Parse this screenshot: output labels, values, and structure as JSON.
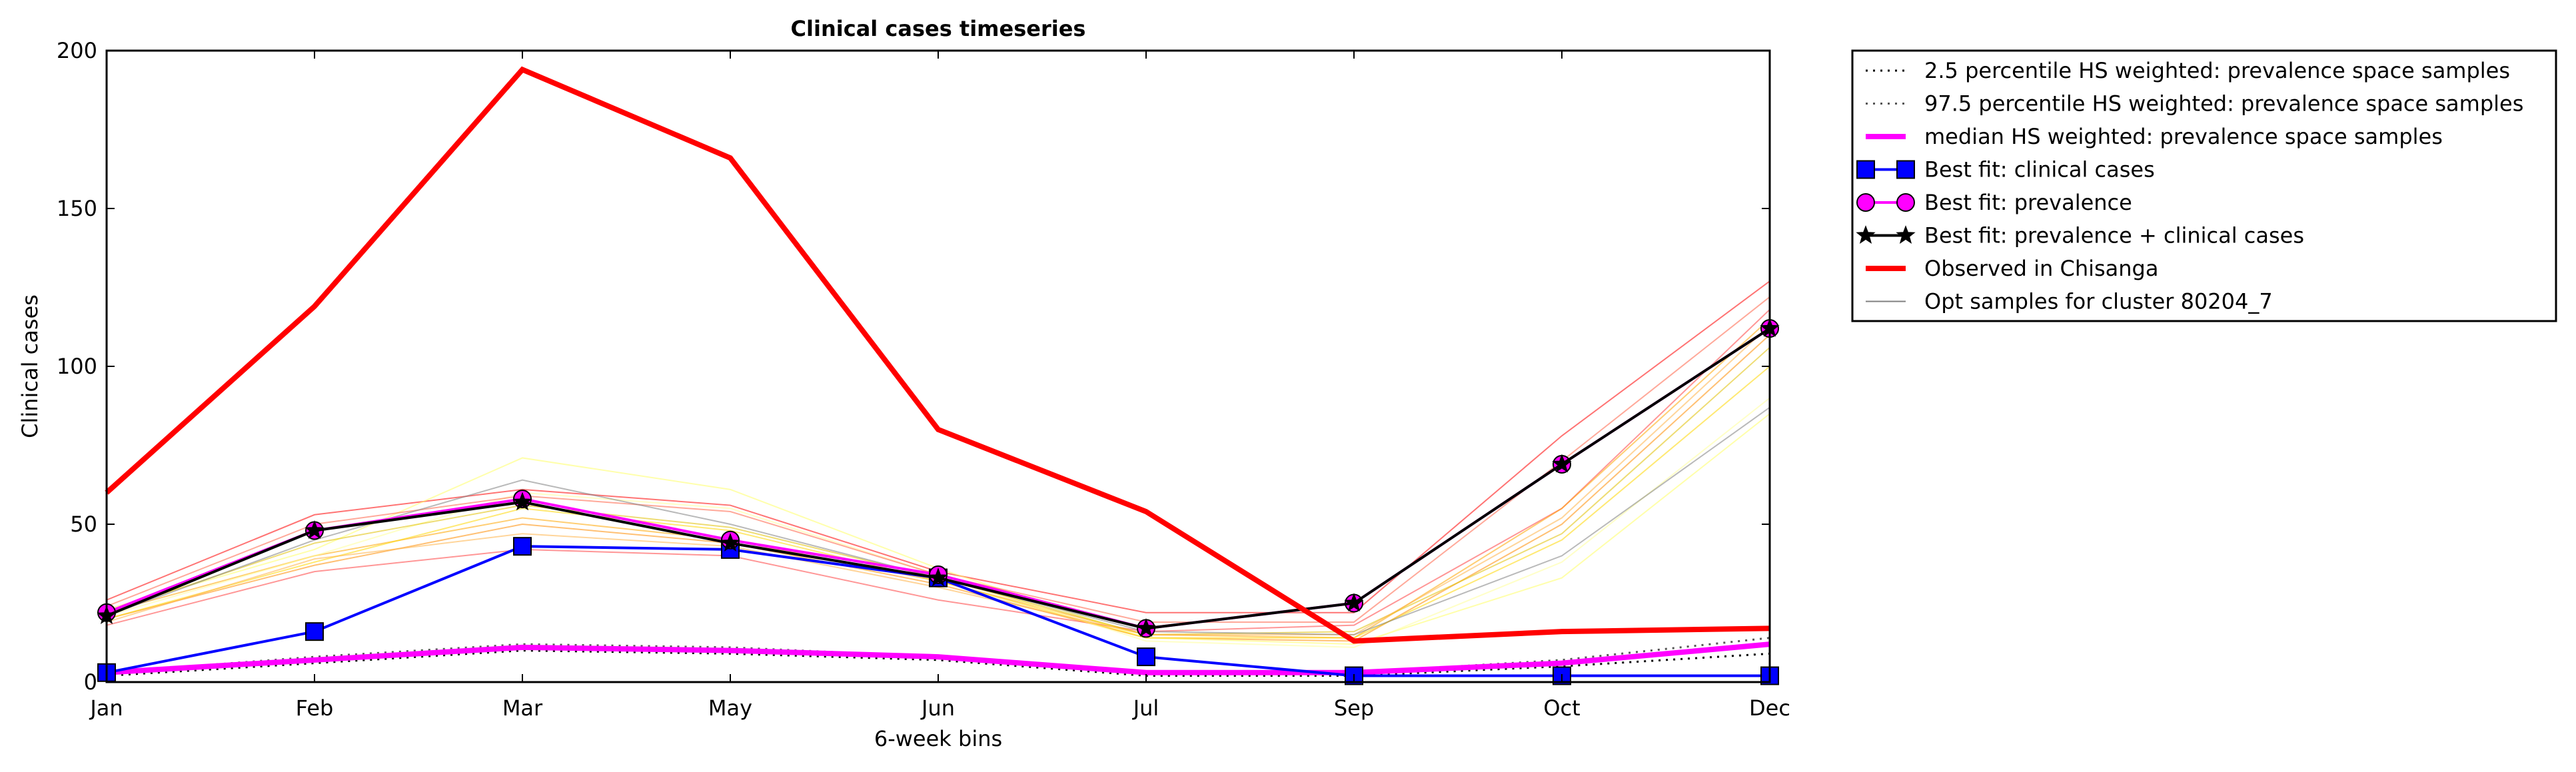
{
  "chart_data": {
    "type": "line",
    "title": "Clinical cases timeseries",
    "xlabel": "6-week bins",
    "ylabel": "Clinical cases",
    "categories": [
      "Jan",
      "Feb",
      "Mar",
      "May",
      "Jun",
      "Jul",
      "Sep",
      "Oct",
      "Dec"
    ],
    "ylim": [
      0,
      200
    ],
    "yticks": [
      0,
      50,
      100,
      150,
      200
    ],
    "grid": false,
    "legend_placement": "outside-upper-right",
    "series": [
      {
        "name": "Observed in Chisanga",
        "color": "#ff0000",
        "style": "solid-thick",
        "values": [
          60,
          119,
          194,
          166,
          80,
          54,
          13,
          16,
          17
        ]
      },
      {
        "name": "Best fit: clinical cases",
        "color": "#0000ff",
        "marker": "square",
        "values": [
          3,
          16,
          43,
          42,
          33,
          8,
          2,
          2,
          2
        ]
      },
      {
        "name": "Best fit: prevalence",
        "color": "#ff00ff",
        "marker": "circle",
        "values": [
          22,
          48,
          58,
          45,
          34,
          17,
          25,
          69,
          112
        ]
      },
      {
        "name": "Best fit: prevalence + clinical cases",
        "color": "#000000",
        "marker": "star",
        "values": [
          21,
          48,
          57,
          44,
          33,
          17,
          25,
          69,
          112
        ]
      },
      {
        "name": "median HS weighted: prevalence space samples",
        "color": "#ff00ff",
        "style": "solid-thick",
        "values": [
          3,
          7,
          11,
          10,
          8,
          3,
          3,
          6,
          12
        ]
      },
      {
        "name": "2.5 percentile HS weighted: prevalence space samples",
        "color": "#000000",
        "style": "dotted",
        "values": [
          2,
          6,
          10,
          9,
          7,
          2,
          2,
          5,
          9
        ]
      },
      {
        "name": "97.5 percentile HS weighted: prevalence space samples",
        "color": "#555555",
        "style": "dotted",
        "values": [
          3,
          8,
          12,
          11,
          8,
          3,
          3,
          7,
          14
        ]
      },
      {
        "name": "Opt samples for cluster 80204_7",
        "color": "#808080",
        "style": "thin",
        "values": [
          21,
          45,
          64,
          50,
          33,
          16,
          15,
          40,
          87
        ]
      }
    ],
    "opt_samples": [
      {
        "color": "#ff0000",
        "values": [
          26,
          53,
          61,
          56,
          35,
          22,
          22,
          78,
          127
        ]
      },
      {
        "color": "#ff4040",
        "values": [
          18,
          35,
          42,
          40,
          26,
          16,
          18,
          55,
          118
        ]
      },
      {
        "color": "#ff8c00",
        "values": [
          20,
          37,
          50,
          44,
          31,
          14,
          13,
          50,
          110
        ]
      },
      {
        "color": "#ffa500",
        "values": [
          22,
          40,
          52,
          45,
          32,
          15,
          14,
          55,
          115
        ]
      },
      {
        "color": "#ffd700",
        "values": [
          20,
          38,
          55,
          48,
          32,
          14,
          14,
          45,
          100
        ]
      },
      {
        "color": "#ffff66",
        "values": [
          23,
          42,
          71,
          61,
          36,
          14,
          12,
          33,
          85
        ]
      },
      {
        "color": "#ffff99",
        "values": [
          21,
          40,
          60,
          55,
          34,
          13,
          11,
          38,
          90
        ]
      },
      {
        "color": "#ff6347",
        "values": [
          24,
          50,
          59,
          54,
          34,
          19,
          19,
          70,
          122
        ]
      },
      {
        "color": "#e0c000",
        "values": [
          22,
          44,
          56,
          49,
          33,
          15,
          16,
          47,
          106
        ]
      },
      {
        "color": "#ffb347",
        "values": [
          19,
          39,
          47,
          43,
          30,
          15,
          15,
          52,
          113
        ]
      },
      {
        "color": "#808080",
        "values": [
          21,
          45,
          64,
          50,
          33,
          16,
          15,
          40,
          87
        ]
      }
    ]
  }
}
